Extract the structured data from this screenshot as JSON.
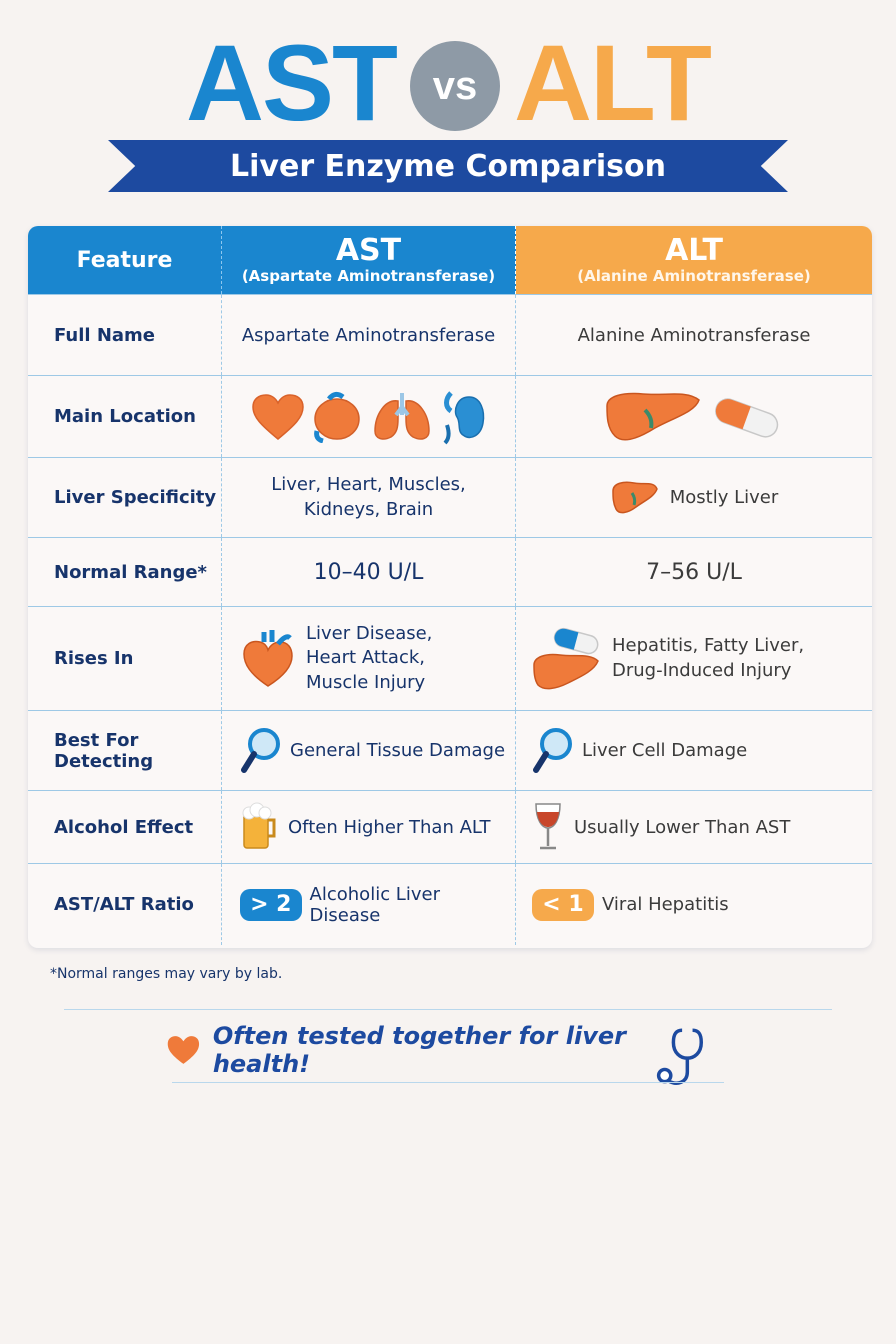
{
  "title": {
    "left": "AST",
    "vs": "vs",
    "right": "ALT"
  },
  "subtitle": "Liver Enzyme Comparison",
  "table": {
    "header": {
      "feature": "Feature",
      "ast": {
        "abbr": "AST",
        "full": "(Aspartate Aminotransferase)"
      },
      "alt": {
        "abbr": "ALT",
        "full": "(Alanine Aminotransferase)"
      }
    },
    "rows": [
      {
        "feature": "Full Name",
        "ast": "Aspartate Aminotransferase",
        "alt": "Alanine Aminotransferase"
      },
      {
        "feature": "Main Location",
        "ast_icons": [
          "heart-icon",
          "liver-icon",
          "lungs-icon",
          "kidney-icon"
        ],
        "alt_icons": [
          "liver-icon",
          "pill-icon"
        ]
      },
      {
        "feature": "Liver Specificity",
        "ast_lines": [
          "Liver, Heart, Muscles,",
          "Kidneys, Brain"
        ],
        "alt": "Mostly Liver",
        "alt_icon": "liver-icon"
      },
      {
        "feature": "Normal Range*",
        "ast": "10–40 U/L",
        "alt": "7–56 U/L"
      },
      {
        "feature": "Rises In",
        "ast_lines": [
          "Liver Disease,",
          "Heart Attack,",
          "Muscle Injury"
        ],
        "ast_icon": "heart-icon",
        "alt_lines": [
          "Hepatitis, Fatty Liver,",
          "Drug-Induced Injury"
        ],
        "alt_icon": "liver-pill-icon"
      },
      {
        "feature": "Best For Detecting",
        "ast": "General Tissue Damage",
        "alt": "Liver Cell Damage",
        "icon": "magnifier-icon"
      },
      {
        "feature": "Alcohol Effect",
        "ast": "Often Higher Than ALT",
        "ast_icon": "beer-icon",
        "alt": "Usually Lower Than AST",
        "alt_icon": "wine-icon"
      },
      {
        "feature": "AST/ALT Ratio",
        "ast_badge": "> 2",
        "ast": "Alcoholic Liver Disease",
        "alt_badge": "< 1",
        "alt": "Viral Hepatitis"
      }
    ]
  },
  "footnote": "*Normal ranges may vary by lab.",
  "tagline": "Often tested together for liver health!",
  "colors": {
    "ast_blue": "#1a86cf",
    "alt_orange": "#f6a94b",
    "navy": "#1d4aa0",
    "vs_gray": "#8e9aa6",
    "organ_orange": "#ef7a3a"
  }
}
